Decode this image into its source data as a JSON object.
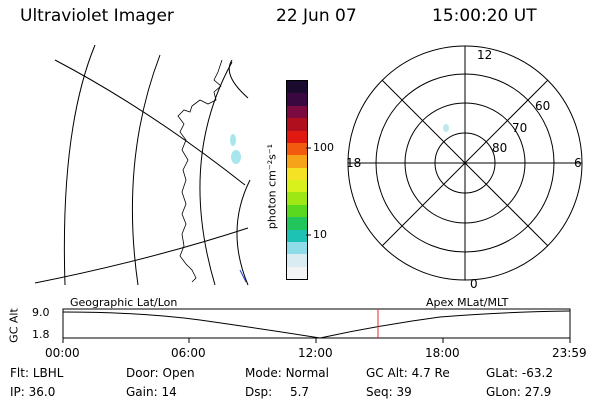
{
  "header": {
    "instrument": "Ultraviolet Imager",
    "date": "22 Jun 07",
    "time": "15:00:20 UT"
  },
  "colorbar": {
    "unit_label": "photon cm⁻²s⁻¹",
    "tick_high": "100",
    "tick_low": "10",
    "colors": [
      "#1a0a2e",
      "#3a0840",
      "#7a0a40",
      "#b0101e",
      "#e01a10",
      "#f25a10",
      "#f7a31a",
      "#f5e224",
      "#d8f01c",
      "#9ee614",
      "#5ad820",
      "#22c45c",
      "#1ec2b4",
      "#8edce8",
      "#d8ecf2",
      "#f2f4f6"
    ]
  },
  "polar_plot": {
    "mlt_labels": {
      "top": "12",
      "right": "6",
      "bottom": "0",
      "left": "18"
    },
    "lat_labels": [
      "60",
      "70",
      "80"
    ]
  },
  "timeline": {
    "left_label": "Geographic Lat/Lon",
    "right_label": "Apex MLat/MLT",
    "axis_label": "GC Alt",
    "y_ticks": [
      "9.0",
      "1.8"
    ],
    "x_ticks": [
      "00:00",
      "06:00",
      "12:00",
      "18:00",
      "23:59"
    ],
    "marker_color": "#e8282c"
  },
  "status": {
    "flt_label": "Flt:",
    "flt_value": "LBHL",
    "ip_label": "IP:",
    "ip_value": "36.0",
    "door_label": "Door:",
    "door_value": "Open",
    "gain_label": "Gain:",
    "gain_value": "14",
    "mode_label": "Mode:",
    "mode_value": "Normal",
    "dsp_label": "Dsp:",
    "dsp_value": "5.7",
    "gcalt_label": "GC Alt:",
    "gcalt_value": "4.7 Re",
    "seq_label": "Seq:",
    "seq_value": "39",
    "glat_label": "GLat:",
    "glat_value": "-63.2",
    "glon_label": "GLon:",
    "glon_value": "27.9"
  }
}
